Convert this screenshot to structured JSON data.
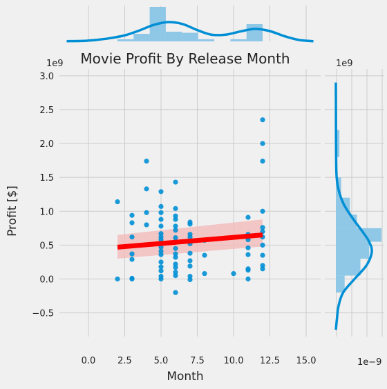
{
  "chart_data": {
    "type": "scatter",
    "title": "Movie Profit By Release Month",
    "xlabel": "Month",
    "ylabel": "Profit [$]",
    "xlim": [
      -2,
      16
    ],
    "ylim": [
      -0.85,
      3.1
    ],
    "y_scale_label": "1e9",
    "right_scale_label": "1e9",
    "bottom_right_label": "1e−9",
    "grid": true,
    "x_ticks": [
      {
        "value": 0,
        "label": "0.0"
      },
      {
        "value": 2.5,
        "label": "2.5"
      },
      {
        "value": 5,
        "label": "5.0"
      },
      {
        "value": 7.5,
        "label": "7.5"
      },
      {
        "value": 10,
        "label": "10.0"
      },
      {
        "value": 12.5,
        "label": "12.5"
      },
      {
        "value": 15,
        "label": "15.0"
      }
    ],
    "y_ticks": [
      {
        "value": -0.5,
        "label": "−0.5"
      },
      {
        "value": 0,
        "label": "0.0"
      },
      {
        "value": 0.5,
        "label": "0.5"
      },
      {
        "value": 1.0,
        "label": "1.0"
      },
      {
        "value": 1.5,
        "label": "1.5"
      },
      {
        "value": 2.0,
        "label": "2.0"
      },
      {
        "value": 2.5,
        "label": "2.5"
      },
      {
        "value": 3.0,
        "label": "3.0"
      }
    ],
    "points": [
      [
        2,
        1.14
      ],
      [
        2,
        0.0
      ],
      [
        3,
        0.94
      ],
      [
        3,
        0.83
      ],
      [
        3,
        0.62
      ],
      [
        3,
        0.37
      ],
      [
        3,
        0.29
      ],
      [
        3,
        0.01
      ],
      [
        3,
        0.0
      ],
      [
        4,
        1.74
      ],
      [
        4,
        1.33
      ],
      [
        4,
        0.98
      ],
      [
        4,
        0.8
      ],
      [
        5,
        1.29
      ],
      [
        5,
        1.07
      ],
      [
        5,
        0.98
      ],
      [
        5,
        0.88
      ],
      [
        5,
        0.78
      ],
      [
        5,
        0.67
      ],
      [
        5,
        0.62
      ],
      [
        5,
        0.58
      ],
      [
        5,
        0.53
      ],
      [
        5,
        0.47
      ],
      [
        5,
        0.41
      ],
      [
        5,
        0.36
      ],
      [
        5,
        0.25
      ],
      [
        5,
        0.18
      ],
      [
        5,
        0.12
      ],
      [
        5,
        0.04
      ],
      [
        5,
        0.0
      ],
      [
        6,
        1.43
      ],
      [
        6,
        1.04
      ],
      [
        6,
        0.93
      ],
      [
        6,
        0.88
      ],
      [
        6,
        0.78
      ],
      [
        6,
        0.72
      ],
      [
        6,
        0.61
      ],
      [
        6,
        0.55
      ],
      [
        6,
        0.45
      ],
      [
        6,
        0.37
      ],
      [
        6,
        0.32
      ],
      [
        6,
        0.22
      ],
      [
        6,
        0.17
      ],
      [
        6,
        0.1
      ],
      [
        6,
        0.05
      ],
      [
        6,
        -0.2
      ],
      [
        7,
        0.84
      ],
      [
        7,
        0.81
      ],
      [
        7,
        0.66
      ],
      [
        7,
        0.62
      ],
      [
        7,
        0.52
      ],
      [
        7,
        0.38
      ],
      [
        7,
        0.27
      ],
      [
        7,
        0.19
      ],
      [
        7,
        0.04
      ],
      [
        7,
        -0.01
      ],
      [
        8,
        0.57
      ],
      [
        8,
        0.35
      ],
      [
        8,
        0.08
      ],
      [
        10,
        0.08
      ],
      [
        11,
        0.91
      ],
      [
        11,
        0.66
      ],
      [
        11,
        0.61
      ],
      [
        11,
        0.58
      ],
      [
        11,
        0.46
      ],
      [
        11,
        0.36
      ],
      [
        11,
        0.15
      ],
      [
        11,
        0.13
      ],
      [
        11,
        0.0
      ],
      [
        12,
        2.35
      ],
      [
        12,
        2.0
      ],
      [
        12,
        1.74
      ],
      [
        12,
        1.0
      ],
      [
        12,
        0.76
      ],
      [
        12,
        0.7
      ],
      [
        12,
        0.62
      ],
      [
        12,
        0.5
      ],
      [
        12,
        0.35
      ],
      [
        12,
        0.2
      ],
      [
        12,
        0.15
      ]
    ],
    "regression": {
      "x": [
        2,
        12
      ],
      "y": [
        0.47,
        0.65
      ],
      "ci_lower": [
        0.3,
        0.48
      ],
      "ci_mid": [
        0.44,
        0.56
      ],
      "ci_upper": [
        0.65,
        0.88
      ]
    },
    "marginal_x": {
      "bins": [
        {
          "x0": 2,
          "x1": 3.11,
          "count": 2
        },
        {
          "x0": 3.11,
          "x1": 4.22,
          "count": 7
        },
        {
          "x0": 4.22,
          "x1": 5.33,
          "count": 32
        },
        {
          "x0": 5.33,
          "x1": 6.44,
          "count": 9
        },
        {
          "x0": 6.44,
          "x1": 7.56,
          "count": 8
        },
        {
          "x0": 7.56,
          "x1": 8.67,
          "count": 2
        },
        {
          "x0": 8.67,
          "x1": 9.78,
          "count": 0
        },
        {
          "x0": 9.78,
          "x1": 10.89,
          "count": 2
        },
        {
          "x0": 10.89,
          "x1": 12,
          "count": 16
        }
      ],
      "kde": [
        [
          -1.5,
          0.1
        ],
        [
          -0.5,
          0.2
        ],
        [
          0.5,
          0.7
        ],
        [
          1.5,
          1.6
        ],
        [
          2.5,
          3.0
        ],
        [
          3.5,
          5.4
        ],
        [
          4.5,
          8.2
        ],
        [
          5.5,
          9.6
        ],
        [
          6.5,
          8.6
        ],
        [
          7.5,
          5.6
        ],
        [
          8.5,
          3.3
        ],
        [
          9.5,
          3.4
        ],
        [
          10.5,
          5.0
        ],
        [
          11.5,
          6.2
        ],
        [
          12.5,
          5.1
        ],
        [
          13.5,
          2.6
        ],
        [
          14.5,
          0.7
        ],
        [
          15.5,
          0.1
        ]
      ]
    },
    "marginal_y": {
      "bins": [
        {
          "y0": -0.2,
          "y1": 0.05,
          "count": 5
        },
        {
          "y0": 0.05,
          "y1": 0.3,
          "count": 14
        },
        {
          "y0": 0.3,
          "y1": 0.55,
          "count": 19
        },
        {
          "y0": 0.55,
          "y1": 0.75,
          "count": 26
        },
        {
          "y0": 0.75,
          "y1": 0.95,
          "count": 12
        },
        {
          "y0": 0.95,
          "y1": 1.2,
          "count": 8
        },
        {
          "y0": 1.2,
          "y1": 1.5,
          "count": 3
        },
        {
          "y0": 1.5,
          "y1": 1.8,
          "count": 0
        },
        {
          "y0": 1.8,
          "y1": 2.2,
          "count": 2
        },
        {
          "y0": 2.2,
          "y1": 2.5,
          "count": 0
        }
      ],
      "kde": [
        [
          -0.75,
          0.0
        ],
        [
          -0.6,
          0.15
        ],
        [
          -0.4,
          0.4
        ],
        [
          -0.2,
          1.1
        ],
        [
          0.0,
          2.8
        ],
        [
          0.2,
          4.6
        ],
        [
          0.4,
          5.4
        ],
        [
          0.55,
          5.0
        ],
        [
          0.7,
          4.0
        ],
        [
          0.9,
          2.5
        ],
        [
          1.1,
          1.2
        ],
        [
          1.3,
          0.45
        ],
        [
          1.5,
          0.12
        ],
        [
          1.8,
          0.04
        ],
        [
          2.2,
          0.02
        ],
        [
          2.6,
          0.01
        ],
        [
          2.9,
          0.0
        ]
      ]
    },
    "colors": {
      "background": "#f0f0f0",
      "grid": "#cbcbcb",
      "points": "#008fd5",
      "histogram": "#8fc7e6",
      "kde": "#008fd5",
      "regression_line": "#ff0000",
      "ci_band": "#f4b8b8"
    }
  }
}
